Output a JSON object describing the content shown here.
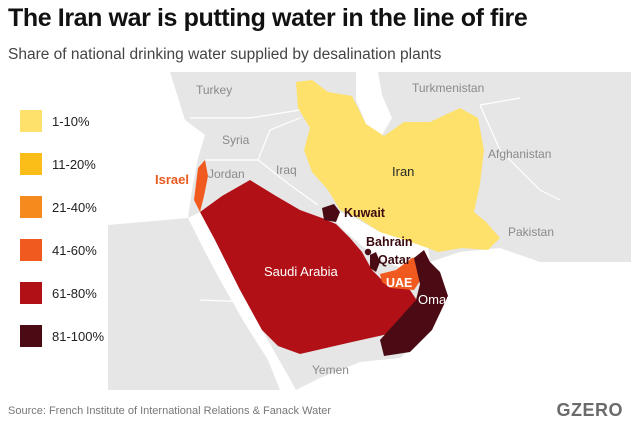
{
  "title": "The Iran war is putting water in the line of fire",
  "subtitle": "Share of national drinking water supplied by desalination plants",
  "legend": [
    {
      "label": "1-10%",
      "color": "#fde16a"
    },
    {
      "label": "11-20%",
      "color": "#fbbd17"
    },
    {
      "label": "21-40%",
      "color": "#f78a1c"
    },
    {
      "label": "41-60%",
      "color": "#f05a1f"
    },
    {
      "label": "61-80%",
      "color": "#b11116"
    },
    {
      "label": "81-100%",
      "color": "#4a0b14"
    }
  ],
  "map": {
    "background_color": "#e6e6e6",
    "water_color": "#ffffff",
    "neighbor_labels": {
      "turkey": "Turkey",
      "turkmenistan": "Turkmenistan",
      "syria": "Syria",
      "afghanistan": "Afghanistan",
      "iraq": "Iraq",
      "jordan": "Jordan",
      "pakistan": "Pakistan",
      "yemen": "Yemen"
    },
    "highlighted": {
      "iran": {
        "label": "Iran",
        "band": "1-10%"
      },
      "israel": {
        "label": "Israel",
        "band": "41-60%"
      },
      "kuwait": {
        "label": "Kuwait",
        "band": "81-100%"
      },
      "bahrain": {
        "label": "Bahrain",
        "band": "81-100%"
      },
      "qatar": {
        "label": "Qatar",
        "band": "81-100%"
      },
      "uae": {
        "label": "UAE",
        "band": "41-60%"
      },
      "saudi_arabia": {
        "label": "Saudi Arabia",
        "band": "61-80%"
      },
      "oman": {
        "label": "Oman",
        "band": "81-100%"
      }
    }
  },
  "source": "Source: French Institute of International Relations & Fanack Water",
  "logo": "GZERO"
}
